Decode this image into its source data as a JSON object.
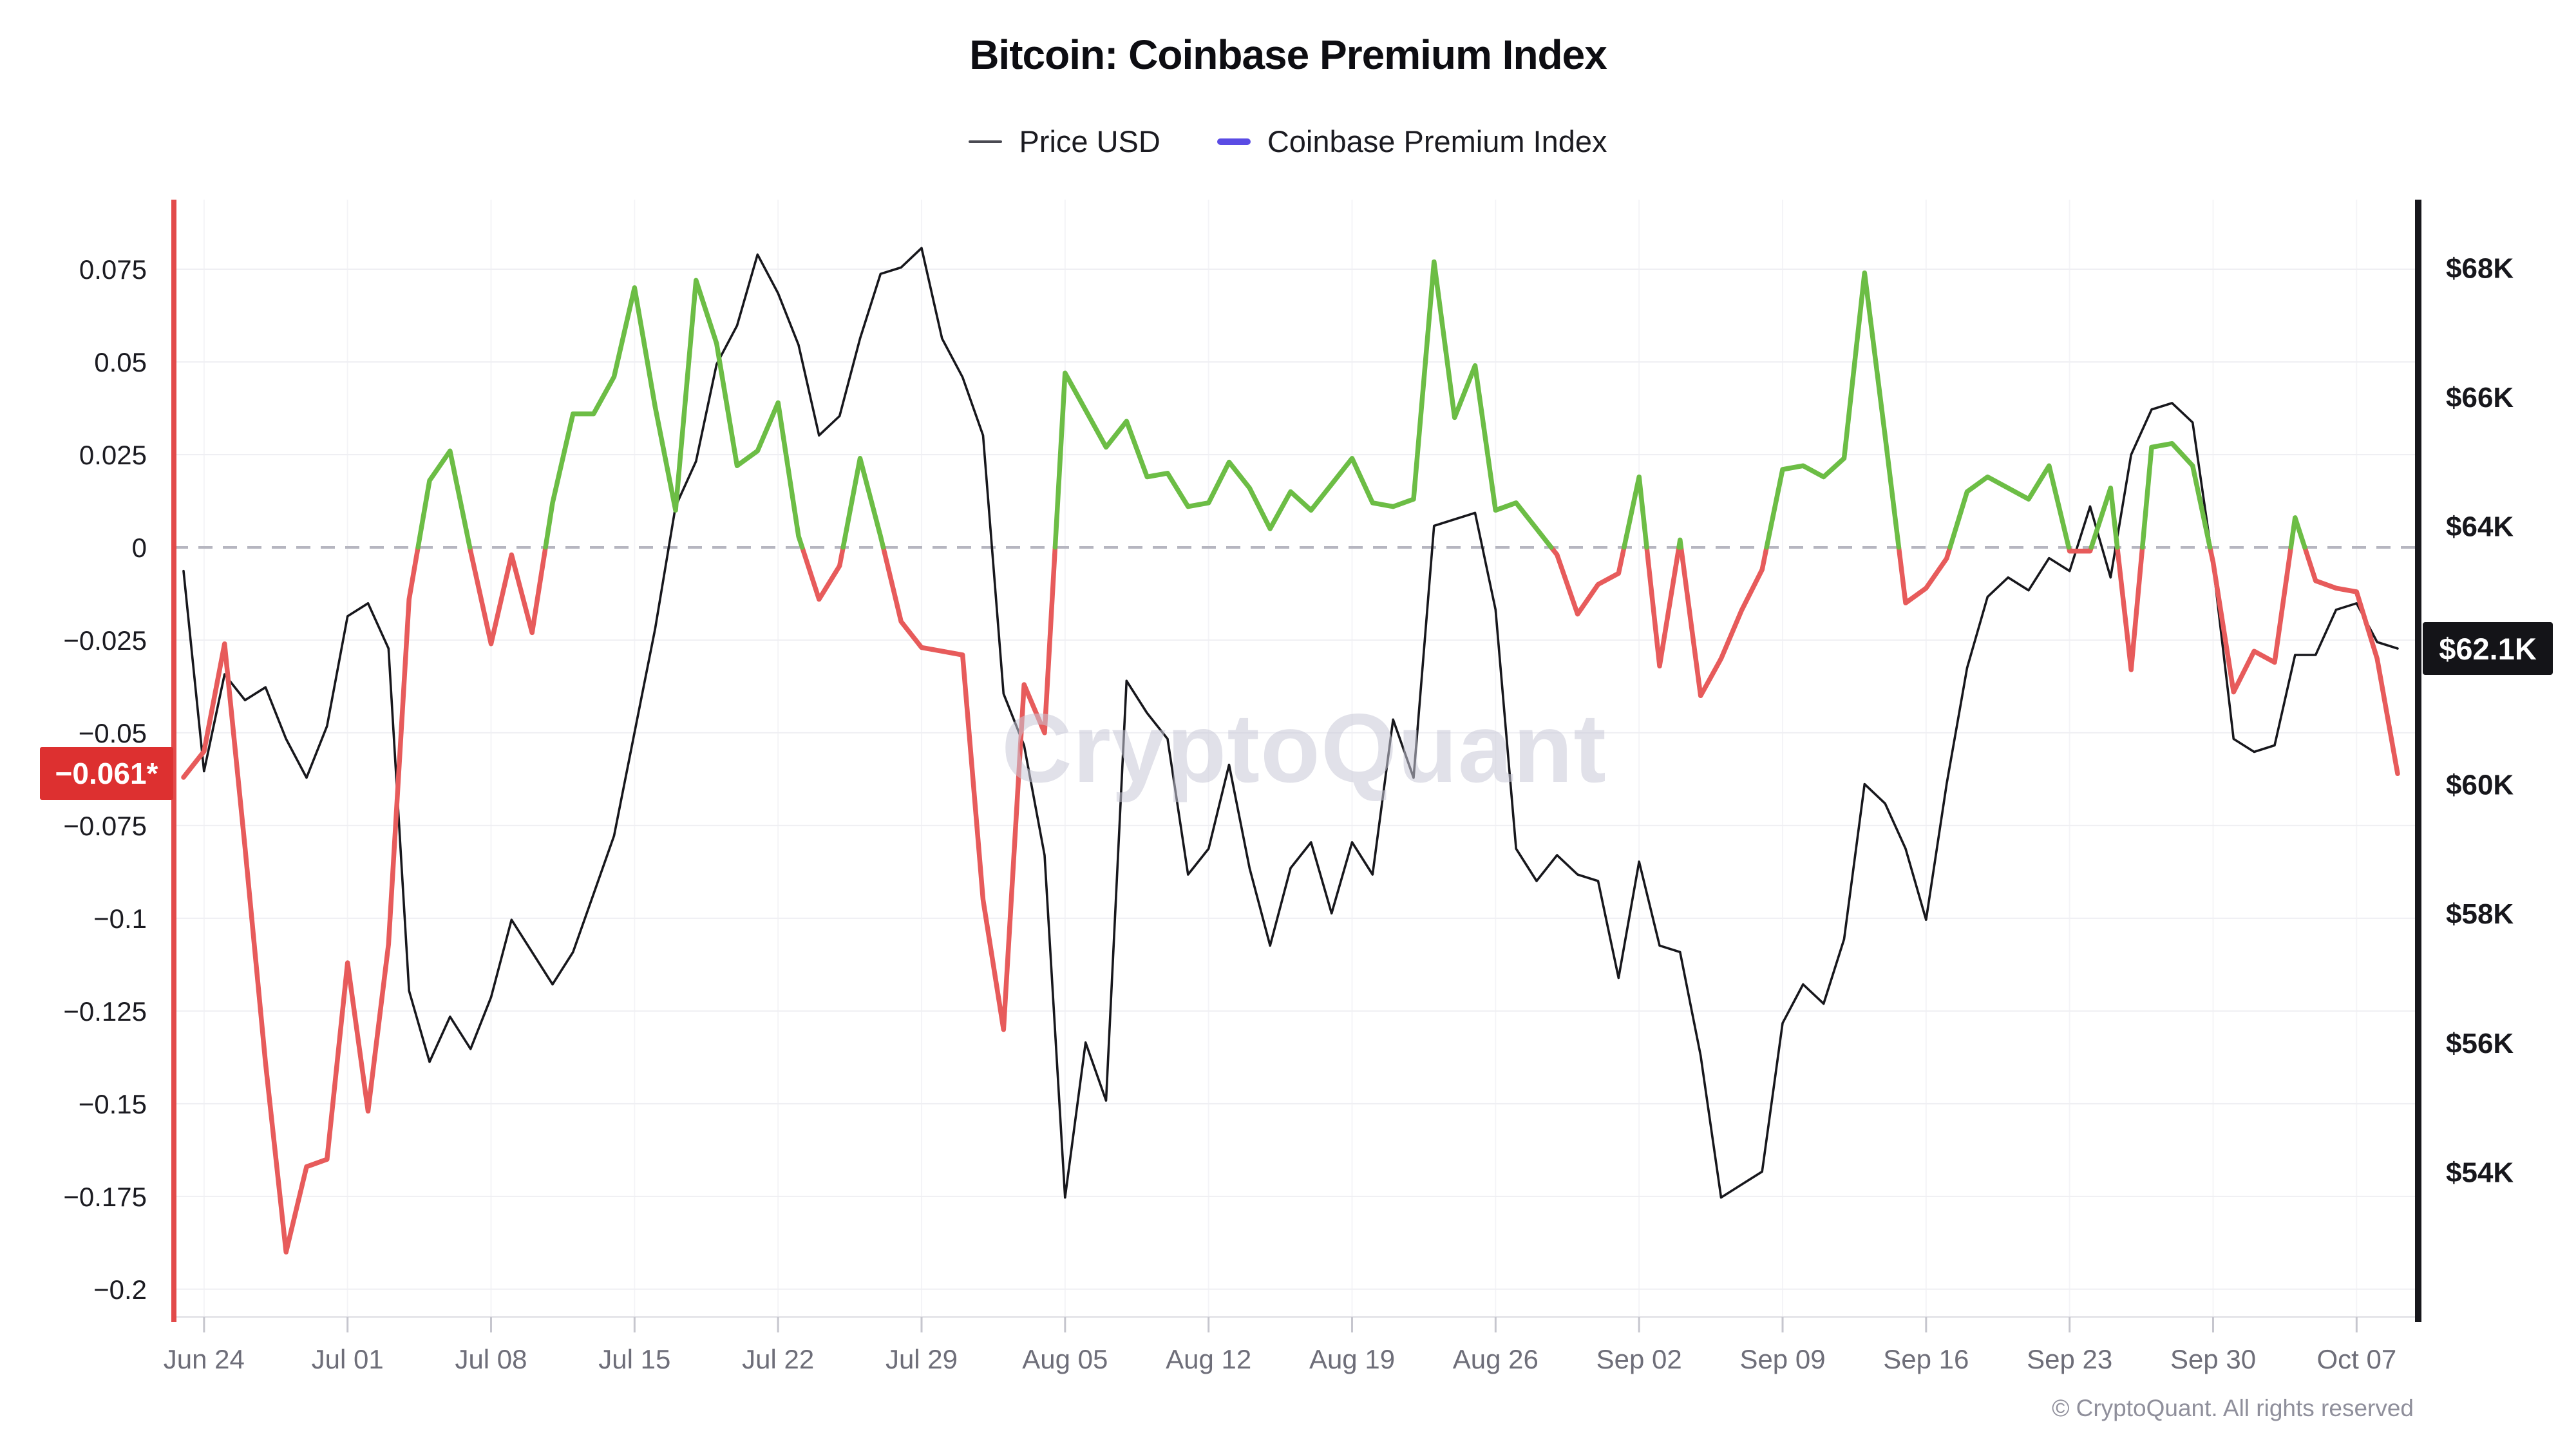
{
  "title": "Bitcoin: Coinbase Premium Index",
  "legend": [
    {
      "label": "Price USD",
      "swatch_color": "#4a4a52"
    },
    {
      "label": "Coinbase Premium Index",
      "swatch_color": "#5a4be4"
    }
  ],
  "watermark": "CryptoQuant",
  "footer": "© CryptoQuant. All rights reserved",
  "badges": {
    "premium_current": {
      "label": "−0.061*",
      "value": -0.061,
      "bg": "#dd3030",
      "fg": "#ffffff"
    },
    "price_current": {
      "label": "$62.1K",
      "value": 62.1,
      "bg": "#141418",
      "fg": "#ffffff"
    }
  },
  "chart_data": {
    "type": "line",
    "title": "Bitcoin: Coinbase Premium Index",
    "grid": true,
    "legend_position": "top",
    "x": [
      "Jun 23",
      "Jun 24",
      "Jun 25",
      "Jun 26",
      "Jun 27",
      "Jun 28",
      "Jun 29",
      "Jun 30",
      "Jul 01",
      "Jul 02",
      "Jul 03",
      "Jul 04",
      "Jul 05",
      "Jul 06",
      "Jul 07",
      "Jul 08",
      "Jul 09",
      "Jul 10",
      "Jul 11",
      "Jul 12",
      "Jul 13",
      "Jul 14",
      "Jul 15",
      "Jul 16",
      "Jul 17",
      "Jul 18",
      "Jul 19",
      "Jul 20",
      "Jul 21",
      "Jul 22",
      "Jul 23",
      "Jul 24",
      "Jul 25",
      "Jul 26",
      "Jul 27",
      "Jul 28",
      "Jul 29",
      "Jul 30",
      "Jul 31",
      "Aug 01",
      "Aug 02",
      "Aug 03",
      "Aug 04",
      "Aug 05",
      "Aug 06",
      "Aug 07",
      "Aug 08",
      "Aug 09",
      "Aug 10",
      "Aug 11",
      "Aug 12",
      "Aug 13",
      "Aug 14",
      "Aug 15",
      "Aug 16",
      "Aug 17",
      "Aug 18",
      "Aug 19",
      "Aug 20",
      "Aug 21",
      "Aug 22",
      "Aug 23",
      "Aug 24",
      "Aug 25",
      "Aug 26",
      "Aug 27",
      "Aug 28",
      "Aug 29",
      "Aug 30",
      "Aug 31",
      "Sep 01",
      "Sep 02",
      "Sep 03",
      "Sep 04",
      "Sep 05",
      "Sep 06",
      "Sep 07",
      "Sep 08",
      "Sep 09",
      "Sep 10",
      "Sep 11",
      "Sep 12",
      "Sep 13",
      "Sep 14",
      "Sep 15",
      "Sep 16",
      "Sep 17",
      "Sep 18",
      "Sep 19",
      "Sep 20",
      "Sep 21",
      "Sep 22",
      "Sep 23",
      "Sep 24",
      "Sep 25",
      "Sep 26",
      "Sep 27",
      "Sep 28",
      "Sep 29",
      "Sep 30",
      "Oct 01",
      "Oct 02",
      "Oct 03",
      "Oct 04",
      "Oct 05",
      "Oct 06",
      "Oct 07",
      "Oct 08",
      "Oct 09"
    ],
    "series": [
      {
        "name": "Price USD",
        "axis": "right",
        "color": "#17171c",
        "unit": "K USD",
        "values": [
          63.3,
          60.2,
          61.7,
          61.3,
          61.5,
          60.7,
          60.1,
          60.9,
          62.6,
          62.8,
          62.1,
          56.8,
          55.7,
          56.4,
          55.9,
          56.7,
          57.9,
          57.4,
          56.9,
          57.4,
          58.3,
          59.2,
          60.8,
          62.4,
          64.3,
          65.0,
          66.5,
          67.1,
          68.2,
          67.6,
          66.8,
          65.4,
          65.7,
          66.9,
          67.9,
          68.0,
          68.3,
          66.9,
          66.3,
          65.4,
          61.4,
          60.6,
          58.9,
          53.6,
          56.0,
          55.1,
          61.6,
          61.1,
          60.7,
          58.6,
          59.0,
          60.3,
          58.7,
          57.5,
          58.7,
          59.1,
          58.0,
          59.1,
          58.6,
          61.0,
          60.1,
          64.0,
          64.1,
          64.2,
          62.7,
          59.0,
          58.5,
          58.9,
          58.6,
          58.5,
          57.0,
          58.8,
          57.5,
          57.4,
          55.8,
          53.6,
          53.8,
          54.0,
          56.3,
          56.9,
          56.6,
          57.6,
          60.0,
          59.7,
          59.0,
          57.9,
          60.0,
          61.8,
          62.9,
          63.2,
          63.0,
          63.5,
          63.3,
          64.3,
          63.2,
          65.1,
          65.8,
          65.9,
          65.6,
          63.4,
          60.7,
          60.5,
          60.6,
          62.0,
          62.0,
          62.7,
          62.8,
          62.2,
          62.1
        ]
      },
      {
        "name": "Coinbase Premium Index",
        "axis": "left",
        "color_positive": "#6cbd45",
        "color_negative": "#e75b5b",
        "values": [
          -0.062,
          -0.055,
          -0.026,
          -0.081,
          -0.139,
          -0.19,
          -0.167,
          -0.165,
          -0.112,
          -0.152,
          -0.107,
          -0.014,
          0.018,
          0.026,
          -0.001,
          -0.026,
          -0.002,
          -0.023,
          0.012,
          0.036,
          0.036,
          0.046,
          0.07,
          0.038,
          0.01,
          0.072,
          0.055,
          0.022,
          0.026,
          0.039,
          0.003,
          -0.014,
          -0.005,
          0.024,
          0.003,
          -0.02,
          -0.027,
          -0.028,
          -0.029,
          -0.095,
          -0.13,
          -0.037,
          -0.05,
          0.047,
          0.037,
          0.027,
          0.034,
          0.019,
          0.02,
          0.011,
          0.012,
          0.023,
          0.016,
          0.005,
          0.015,
          0.01,
          0.017,
          0.024,
          0.012,
          0.011,
          0.013,
          0.077,
          0.035,
          0.049,
          0.01,
          0.012,
          0.005,
          -0.002,
          -0.018,
          -0.01,
          -0.007,
          0.019,
          -0.032,
          0.002,
          -0.04,
          -0.03,
          -0.017,
          -0.006,
          0.021,
          0.022,
          0.019,
          0.024,
          0.074,
          0.03,
          -0.015,
          -0.011,
          -0.003,
          0.015,
          0.019,
          0.016,
          0.013,
          0.022,
          -0.001,
          -0.001,
          0.016,
          -0.033,
          0.027,
          0.028,
          0.022,
          -0.004,
          -0.039,
          -0.028,
          -0.031,
          0.008,
          -0.009,
          -0.011,
          -0.012,
          -0.03,
          -0.061
        ]
      }
    ],
    "left_axis": {
      "min": -0.2075,
      "max": 0.09375,
      "tick_values": [
        0.075,
        0.05,
        0.025,
        0,
        -0.025,
        -0.05,
        -0.075,
        -0.1,
        -0.125,
        -0.15,
        -0.175,
        -0.2
      ],
      "tick_labels": [
        "0.075",
        "0.05",
        "0.025",
        "0",
        "−0.025",
        "−0.05",
        "−0.075",
        "−0.1",
        "−0.125",
        "−0.15",
        "−0.175",
        "−0.2"
      ],
      "zero_line_dashed": true,
      "spine_color": "#e24a4a"
    },
    "right_axis": {
      "min": 51.75,
      "max": 69.05,
      "tick_values": [
        68,
        66,
        64,
        60,
        58,
        56,
        54
      ],
      "tick_labels": [
        "$68K",
        "$66K",
        "$64K",
        "$60K",
        "$58K",
        "$56K",
        "$54K"
      ],
      "spine_color": "#17171c"
    },
    "x_ticks": [
      "Jun 24",
      "Jul 01",
      "Jul 08",
      "Jul 15",
      "Jul 22",
      "Jul 29",
      "Aug 05",
      "Aug 12",
      "Aug 19",
      "Aug 26",
      "Sep 02",
      "Sep 09",
      "Sep 16",
      "Sep 23",
      "Sep 30",
      "Oct 07"
    ]
  }
}
